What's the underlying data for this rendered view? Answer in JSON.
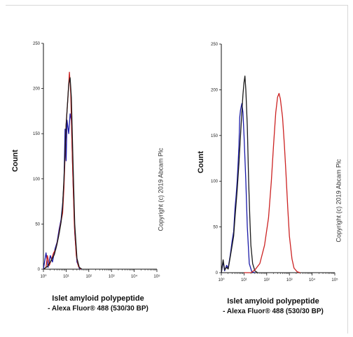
{
  "figure": {
    "copyright": "Copyright (c) 2019 Abcam Plc"
  },
  "chart_data": [
    {
      "type": "line",
      "title": "",
      "xlabel_line1": "Islet amyloid polypeptide",
      "xlabel_line2": "- Alexa Fluor® 488 (530/30 BP)",
      "ylabel": "Count",
      "x_scale": "log",
      "xlim": [
        1,
        100000
      ],
      "ylim": [
        0,
        250
      ],
      "y_ticks": [
        0,
        50,
        100,
        150,
        200,
        250
      ],
      "x_ticks": [
        1,
        10,
        100,
        1000,
        10000,
        100000
      ],
      "x_tick_labels": [
        "10⁰",
        "10¹",
        "10²",
        "10³",
        "10⁴",
        "10⁵"
      ],
      "series": [
        {
          "color": "#1a1aa8",
          "points": [
            [
              1,
              0
            ],
            [
              1.3,
              18
            ],
            [
              1.6,
              2
            ],
            [
              2,
              15
            ],
            [
              2.5,
              8
            ],
            [
              3.2,
              22
            ],
            [
              4,
              30
            ],
            [
              5,
              45
            ],
            [
              6,
              55
            ],
            [
              7,
              72
            ],
            [
              8,
              95
            ],
            [
              9,
              155
            ],
            [
              10,
              120
            ],
            [
              11,
              165
            ],
            [
              13,
              150
            ],
            [
              15,
              172
            ],
            [
              17,
              165
            ],
            [
              20,
              100
            ],
            [
              24,
              40
            ],
            [
              30,
              8
            ],
            [
              38,
              1
            ],
            [
              50,
              0
            ]
          ]
        },
        {
          "color": "#cc2222",
          "points": [
            [
              1,
              0
            ],
            [
              1.3,
              2
            ],
            [
              1.5,
              15
            ],
            [
              1.8,
              4
            ],
            [
              2.2,
              10
            ],
            [
              2.8,
              18
            ],
            [
              3.5,
              22
            ],
            [
              4.5,
              35
            ],
            [
              5.5,
              48
            ],
            [
              7,
              62
            ],
            [
              8,
              90
            ],
            [
              9,
              125
            ],
            [
              10,
              160
            ],
            [
              12,
              190
            ],
            [
              14,
              218
            ],
            [
              16,
              195
            ],
            [
              19,
              120
            ],
            [
              23,
              50
            ],
            [
              28,
              15
            ],
            [
              35,
              3
            ],
            [
              45,
              0
            ]
          ]
        },
        {
          "color": "#1a1a1a",
          "points": [
            [
              1,
              0
            ],
            [
              1.5,
              3
            ],
            [
              2,
              8
            ],
            [
              3,
              16
            ],
            [
              4,
              28
            ],
            [
              5,
              40
            ],
            [
              6,
              52
            ],
            [
              7,
              70
            ],
            [
              8,
              100
            ],
            [
              9,
              130
            ],
            [
              10,
              160
            ],
            [
              11,
              175
            ],
            [
              13,
              205
            ],
            [
              15,
              212
            ],
            [
              17,
              190
            ],
            [
              20,
              120
            ],
            [
              24,
              50
            ],
            [
              30,
              12
            ],
            [
              38,
              2
            ],
            [
              50,
              0
            ]
          ]
        }
      ]
    },
    {
      "type": "line",
      "title": "",
      "xlabel_line1": "Islet amyloid polypeptide",
      "xlabel_line2": "- Alexa Fluor® 488 (530/30 BP)",
      "ylabel": "Count",
      "x_scale": "log",
      "xlim": [
        1,
        100000
      ],
      "ylim": [
        0,
        250
      ],
      "y_ticks": [
        0,
        50,
        100,
        150,
        200,
        250
      ],
      "x_ticks": [
        1,
        10,
        100,
        1000,
        10000,
        100000
      ],
      "x_tick_labels": [
        "10⁰",
        "10¹",
        "10²",
        "10³",
        "10⁴",
        "10⁵"
      ],
      "series": [
        {
          "color": "#1a1aa8",
          "points": [
            [
              1,
              0
            ],
            [
              1.2,
              12
            ],
            [
              1.4,
              2
            ],
            [
              1.7,
              8
            ],
            [
              2,
              5
            ],
            [
              2.5,
              20
            ],
            [
              3,
              35
            ],
            [
              3.5,
              45
            ],
            [
              4,
              70
            ],
            [
              4.5,
              85
            ],
            [
              5,
              100
            ],
            [
              5.5,
              120
            ],
            [
              6,
              140
            ],
            [
              6.5,
              170
            ],
            [
              7,
              178
            ],
            [
              8,
              185
            ],
            [
              9,
              175
            ],
            [
              10,
              150
            ],
            [
              12,
              100
            ],
            [
              14,
              50
            ],
            [
              17,
              10
            ],
            [
              22,
              1
            ],
            [
              30,
              0
            ]
          ]
        },
        {
          "color": "#1a1a1a",
          "points": [
            [
              1,
              0
            ],
            [
              1.2,
              14
            ],
            [
              1.4,
              3
            ],
            [
              1.7,
              6
            ],
            [
              2,
              4
            ],
            [
              2.5,
              18
            ],
            [
              3,
              30
            ],
            [
              3.5,
              40
            ],
            [
              4,
              60
            ],
            [
              5,
              90
            ],
            [
              6,
              120
            ],
            [
              7,
              150
            ],
            [
              8,
              175
            ],
            [
              9,
              195
            ],
            [
              10,
              208
            ],
            [
              11,
              215
            ],
            [
              12,
              200
            ],
            [
              14,
              160
            ],
            [
              16,
              100
            ],
            [
              18,
              60
            ],
            [
              20,
              30
            ],
            [
              24,
              10
            ],
            [
              30,
              2
            ],
            [
              40,
              0
            ]
          ]
        },
        {
          "color": "#cc2222",
          "points": [
            [
              10,
              0
            ],
            [
              20,
              0
            ],
            [
              30,
              3
            ],
            [
              50,
              10
            ],
            [
              80,
              30
            ],
            [
              120,
              60
            ],
            [
              160,
              100
            ],
            [
              200,
              140
            ],
            [
              250,
              175
            ],
            [
              300,
              192
            ],
            [
              350,
              196
            ],
            [
              400,
              190
            ],
            [
              500,
              170
            ],
            [
              600,
              140
            ],
            [
              700,
              110
            ],
            [
              850,
              70
            ],
            [
              1000,
              40
            ],
            [
              1300,
              15
            ],
            [
              1600,
              5
            ],
            [
              2200,
              1
            ],
            [
              3000,
              0
            ]
          ]
        }
      ]
    }
  ]
}
